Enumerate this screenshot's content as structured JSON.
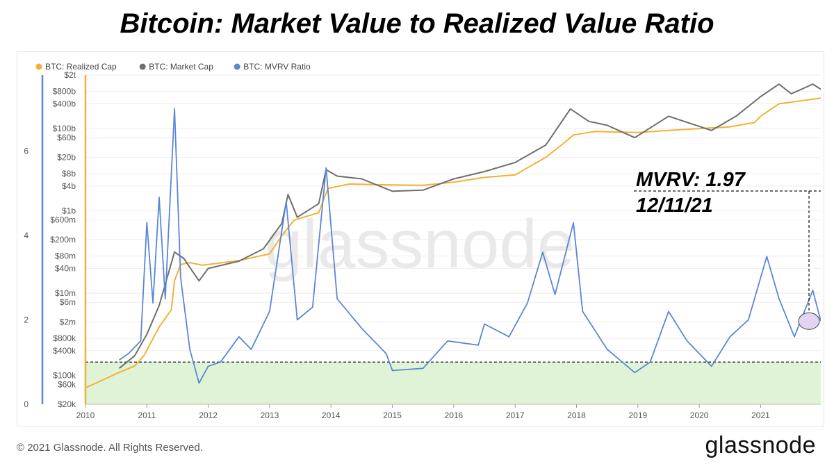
{
  "page": {
    "title": "Bitcoin: Market Value to Realized Value Ratio",
    "footer": "© 2021 Glassnode. All Rights Reserved.",
    "brand": "glassnode",
    "watermark": "glassnode"
  },
  "annotation": {
    "line1": "MVRV: 1.97",
    "line2": "12/11/21"
  },
  "colors": {
    "realized": "#f2b134",
    "market": "#6e6e6e",
    "mvrv": "#5b86d6",
    "zone": "#dff3d6",
    "marker": "#e4d4f4"
  },
  "chart_data": {
    "type": "line",
    "title": "Bitcoin: Market Value to Realized Value Ratio",
    "x_ticks": [
      "2010",
      "2011",
      "2012",
      "2013",
      "2014",
      "2015",
      "2016",
      "2017",
      "2018",
      "2019",
      "2020",
      "2021"
    ],
    "xlim": [
      2010.0,
      2021.98
    ],
    "mvrv_axis": {
      "ticks": [
        "0",
        "2",
        "4",
        "6"
      ],
      "ylim": [
        0,
        7.8
      ]
    },
    "cap_axis": {
      "scale": "log",
      "ylim": [
        20000,
        2000000000000
      ],
      "ticks": [
        {
          "label": "$2t",
          "value": 2000000000000.0
        },
        {
          "label": "$800b",
          "value": 800000000000.0
        },
        {
          "label": "$400b",
          "value": 400000000000.0
        },
        {
          "label": "$100b",
          "value": 100000000000.0
        },
        {
          "label": "$60b",
          "value": 60000000000.0
        },
        {
          "label": "$20b",
          "value": 20000000000.0
        },
        {
          "label": "$8b",
          "value": 8000000000.0
        },
        {
          "label": "$4b",
          "value": 4000000000.0
        },
        {
          "label": "$1b",
          "value": 1000000000.0
        },
        {
          "label": "$600m",
          "value": 600000000.0
        },
        {
          "label": "$200m",
          "value": 200000000.0
        },
        {
          "label": "$80m",
          "value": 80000000.0
        },
        {
          "label": "$40m",
          "value": 40000000.0
        },
        {
          "label": "$10m",
          "value": 10000000.0
        },
        {
          "label": "$6m",
          "value": 6000000.0
        },
        {
          "label": "$2m",
          "value": 2000000.0
        },
        {
          "label": "$800k",
          "value": 800000.0
        },
        {
          "label": "$400k",
          "value": 400000.0
        },
        {
          "label": "$100k",
          "value": 100000.0
        },
        {
          "label": "$60k",
          "value": 60000.0
        },
        {
          "label": "$20k",
          "value": 20000.0
        }
      ]
    },
    "threshold_mvrv": 1.0,
    "annotation_point": {
      "date": "12/11/21",
      "mvrv": 1.97
    },
    "series": [
      {
        "name": "BTC: Realized Cap",
        "axis": "cap",
        "points": [
          [
            2010.0,
            50000
          ],
          [
            2010.5,
            110000
          ],
          [
            2010.8,
            170000
          ],
          [
            2010.95,
            300000
          ],
          [
            2011.2,
            1500000
          ],
          [
            2011.4,
            4000000
          ],
          [
            2011.45,
            20000000
          ],
          [
            2011.55,
            50000000
          ],
          [
            2011.7,
            55000000
          ],
          [
            2011.9,
            48000000
          ],
          [
            2012.0,
            50000000
          ],
          [
            2012.5,
            62000000
          ],
          [
            2013.0,
            90000000
          ],
          [
            2013.2,
            250000000
          ],
          [
            2013.4,
            600000000
          ],
          [
            2013.8,
            900000000
          ],
          [
            2013.95,
            3500000000
          ],
          [
            2014.3,
            4500000000
          ],
          [
            2014.9,
            4300000000
          ],
          [
            2015.5,
            4200000000
          ],
          [
            2016.0,
            5000000000
          ],
          [
            2016.5,
            6500000000
          ],
          [
            2017.0,
            7500000000
          ],
          [
            2017.5,
            20000000000
          ],
          [
            2017.8,
            45000000000
          ],
          [
            2017.95,
            70000000000
          ],
          [
            2018.3,
            85000000000
          ],
          [
            2019.0,
            80000000000
          ],
          [
            2019.5,
            90000000000
          ],
          [
            2020.0,
            100000000000
          ],
          [
            2020.5,
            110000000000
          ],
          [
            2020.9,
            140000000000
          ],
          [
            2021.0,
            200000000000
          ],
          [
            2021.3,
            400000000000
          ],
          [
            2021.98,
            550000000000
          ]
        ]
      },
      {
        "name": "BTC: Market Cap",
        "axis": "cap",
        "points": [
          [
            2010.55,
            150000
          ],
          [
            2010.8,
            300000
          ],
          [
            2011.0,
            1000000
          ],
          [
            2011.2,
            5000000
          ],
          [
            2011.45,
            100000000
          ],
          [
            2011.6,
            70000000
          ],
          [
            2011.85,
            20000000
          ],
          [
            2012.0,
            40000000
          ],
          [
            2012.5,
            60000000
          ],
          [
            2012.9,
            120000000
          ],
          [
            2013.2,
            500000000
          ],
          [
            2013.3,
            2500000000
          ],
          [
            2013.45,
            700000000
          ],
          [
            2013.8,
            1500000000
          ],
          [
            2013.92,
            10000000000
          ],
          [
            2014.1,
            7000000000
          ],
          [
            2014.5,
            6000000000
          ],
          [
            2015.0,
            3000000000
          ],
          [
            2015.5,
            3200000000
          ],
          [
            2016.0,
            6000000000
          ],
          [
            2016.5,
            9000000000
          ],
          [
            2017.0,
            15000000000
          ],
          [
            2017.5,
            40000000000
          ],
          [
            2017.9,
            300000000000
          ],
          [
            2018.2,
            150000000000
          ],
          [
            2018.5,
            120000000000
          ],
          [
            2018.95,
            60000000000
          ],
          [
            2019.5,
            200000000000
          ],
          [
            2020.2,
            90000000000
          ],
          [
            2020.6,
            200000000000
          ],
          [
            2021.0,
            600000000000
          ],
          [
            2021.3,
            1200000000000
          ],
          [
            2021.5,
            700000000000
          ],
          [
            2021.85,
            1200000000000
          ],
          [
            2021.98,
            900000000000
          ]
        ]
      },
      {
        "name": "BTC: MVRV Ratio",
        "axis": "mvrv",
        "points": [
          [
            2010.55,
            1.05
          ],
          [
            2010.7,
            1.2
          ],
          [
            2010.9,
            1.5
          ],
          [
            2011.0,
            4.3
          ],
          [
            2011.1,
            2.4
          ],
          [
            2011.2,
            4.9
          ],
          [
            2011.3,
            2.5
          ],
          [
            2011.45,
            7.0
          ],
          [
            2011.55,
            3.0
          ],
          [
            2011.7,
            1.3
          ],
          [
            2011.85,
            0.5
          ],
          [
            2012.0,
            0.9
          ],
          [
            2012.2,
            1.0
          ],
          [
            2012.5,
            1.6
          ],
          [
            2012.7,
            1.3
          ],
          [
            2013.0,
            2.2
          ],
          [
            2013.27,
            4.8
          ],
          [
            2013.45,
            2.0
          ],
          [
            2013.7,
            2.3
          ],
          [
            2013.92,
            5.6
          ],
          [
            2014.1,
            2.5
          ],
          [
            2014.5,
            1.8
          ],
          [
            2014.9,
            1.2
          ],
          [
            2015.0,
            0.8
          ],
          [
            2015.5,
            0.85
          ],
          [
            2015.9,
            1.5
          ],
          [
            2016.4,
            1.4
          ],
          [
            2016.5,
            1.9
          ],
          [
            2016.9,
            1.6
          ],
          [
            2017.2,
            2.4
          ],
          [
            2017.45,
            3.6
          ],
          [
            2017.65,
            2.6
          ],
          [
            2017.95,
            4.3
          ],
          [
            2018.1,
            2.2
          ],
          [
            2018.5,
            1.3
          ],
          [
            2018.95,
            0.75
          ],
          [
            2019.2,
            1.0
          ],
          [
            2019.5,
            2.2
          ],
          [
            2019.8,
            1.5
          ],
          [
            2020.2,
            0.9
          ],
          [
            2020.5,
            1.6
          ],
          [
            2020.8,
            2.0
          ],
          [
            2021.1,
            3.5
          ],
          [
            2021.3,
            2.5
          ],
          [
            2021.55,
            1.6
          ],
          [
            2021.85,
            2.7
          ],
          [
            2021.98,
            1.97
          ]
        ]
      }
    ]
  }
}
